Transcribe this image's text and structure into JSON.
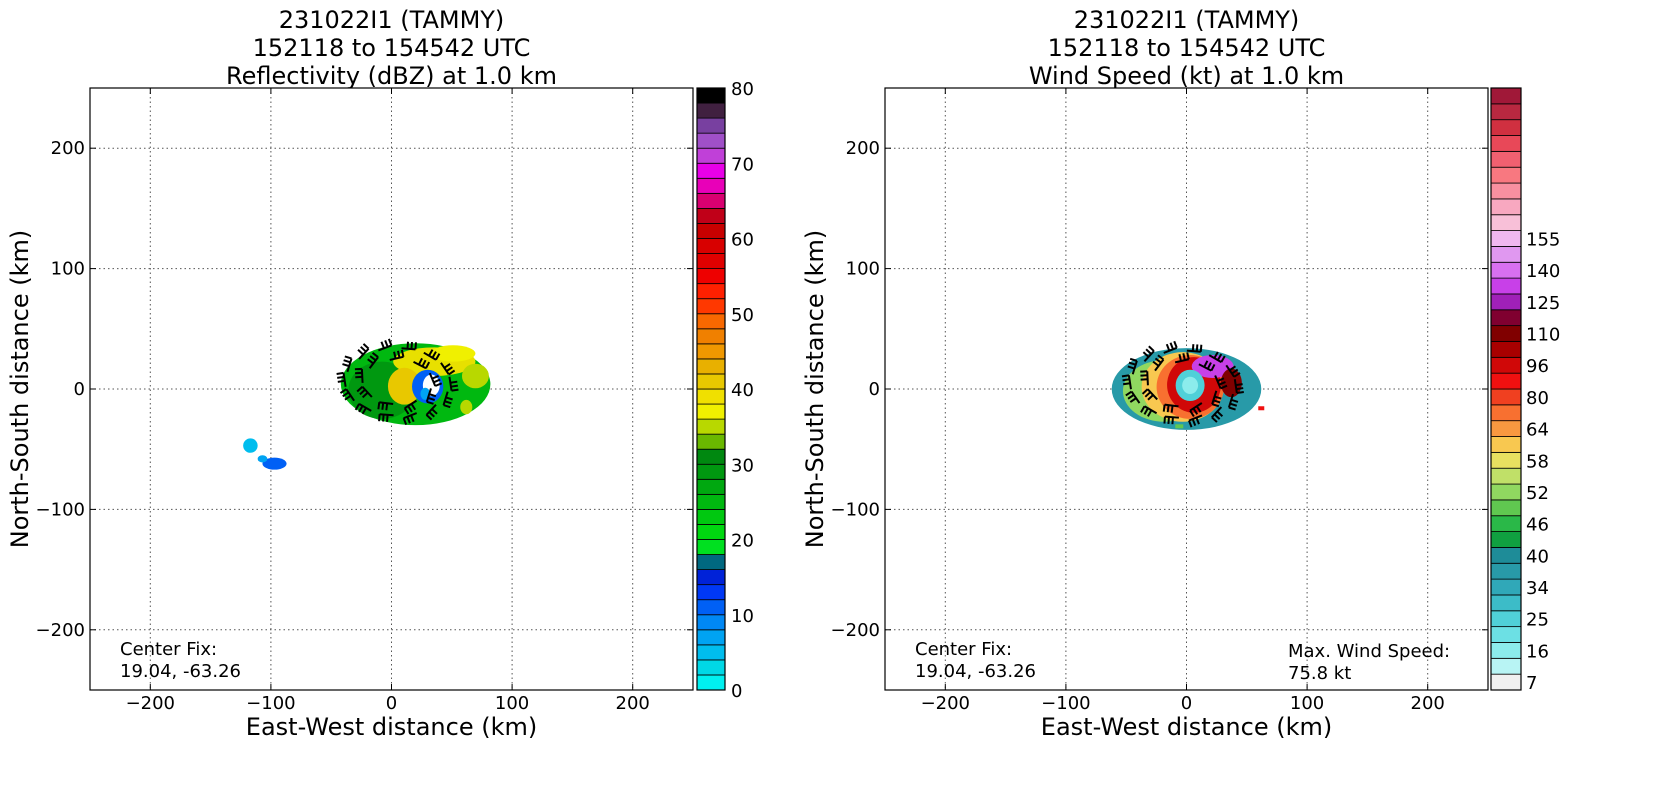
{
  "chart_data": [
    {
      "type": "heatmap",
      "title": [
        "231022I1 (TAMMY)",
        "152118 to 154542 UTC",
        "Reflectivity (dBZ) at 1.0 km"
      ],
      "xlabel": "East-West distance (km)",
      "ylabel": "North-South distance (km)",
      "xlim": [
        -250,
        250
      ],
      "ylim": [
        -250,
        250
      ],
      "xticks": [
        -200,
        -100,
        0,
        100,
        200
      ],
      "yticks": [
        -200,
        -100,
        0,
        100,
        200
      ],
      "xtick_labels": [
        "−200",
        "−100",
        "0",
        "100",
        "200"
      ],
      "ytick_labels": [
        "−200",
        "−100",
        "0",
        "100",
        "200"
      ],
      "grid": true,
      "annotation": [
        "Center Fix:",
        "19.04, -63.26"
      ],
      "colorbar": {
        "min": 0,
        "max": 80,
        "tick_values": [
          0,
          10,
          20,
          30,
          40,
          50,
          60,
          70,
          80
        ],
        "tick_labels": [
          "0",
          "10",
          "20",
          "30",
          "40",
          "50",
          "60",
          "70",
          "80"
        ],
        "colors": [
          "#00f0f0",
          "#00d8e6",
          "#00bdee",
          "#00a3f2",
          "#0088f5",
          "#0060f5",
          "#0038f5",
          "#0022d8",
          "#006880",
          "#00e020",
          "#00d810",
          "#00c810",
          "#00b810",
          "#00a810",
          "#009810",
          "#008810",
          "#6ab800",
          "#b8d800",
          "#f0f000",
          "#f0e000",
          "#e8c800",
          "#e8b000",
          "#f09800",
          "#f08000",
          "#f86800",
          "#ff3800",
          "#ff2000",
          "#ee0000",
          "#e00000",
          "#d80000",
          "#c80000",
          "#c00018",
          "#d80070",
          "#e800b8",
          "#e800e8",
          "#c040d8",
          "#a050c8",
          "#7840a0",
          "#402040",
          "#000000"
        ]
      },
      "features": [
        {
          "name": "storm",
          "x": 20,
          "y": 4,
          "rx": 62,
          "ry": 34
        },
        {
          "name": "band-cell-1",
          "x": -117,
          "y": -47,
          "rx": 6,
          "ry": 6
        },
        {
          "name": "band-cell-2",
          "x": -97,
          "y": -62,
          "rx": 10,
          "ry": 5
        }
      ]
    },
    {
      "type": "heatmap",
      "title": [
        "231022I1 (TAMMY)",
        "152118 to 154542 UTC",
        "Wind Speed (kt) at 1.0 km"
      ],
      "xlabel": "East-West distance (km)",
      "ylabel": "North-South distance (km)",
      "xlim": [
        -250,
        250
      ],
      "ylim": [
        -250,
        250
      ],
      "xticks": [
        -200,
        -100,
        0,
        100,
        200
      ],
      "yticks": [
        -200,
        -100,
        0,
        100,
        200
      ],
      "xtick_labels": [
        "−200",
        "−100",
        "0",
        "100",
        "200"
      ],
      "ytick_labels": [
        "−200",
        "−100",
        "0",
        "100",
        "200"
      ],
      "grid": true,
      "annotation": [
        "Center Fix:",
        "19.04, -63.26"
      ],
      "annotation_right": [
        "Max. Wind Speed:",
        "75.8 kt"
      ],
      "colorbar": {
        "tick_labels": [
          "7",
          "16",
          "25",
          "34",
          "40",
          "46",
          "52",
          "58",
          "64",
          "80",
          "96",
          "110",
          "125",
          "140",
          "155"
        ],
        "tick_bin_index": [
          0,
          2,
          4,
          6,
          8,
          10,
          12,
          14,
          16,
          18,
          20,
          22,
          24,
          26,
          28
        ],
        "colors": [
          "#f0f0f0",
          "#b8f4f4",
          "#8cecec",
          "#6ce0e4",
          "#50d0d8",
          "#3cbcc8",
          "#30a8b8",
          "#289aa8",
          "#1e8c98",
          "#10a040",
          "#2ab848",
          "#60c850",
          "#90d860",
          "#c0e068",
          "#e8e060",
          "#f8c850",
          "#f89840",
          "#f87030",
          "#f04020",
          "#f01010",
          "#d00808",
          "#a80000",
          "#800000",
          "#800030",
          "#a020b8",
          "#c840e8",
          "#d870f0",
          "#e098f0",
          "#f0b8f0",
          "#f8c0d8",
          "#f8a8c0",
          "#f890a0",
          "#f87880",
          "#f06070",
          "#e84858",
          "#d03040",
          "#b82840",
          "#a01838"
        ]
      },
      "features": [
        {
          "name": "storm",
          "x": 0,
          "y": 0,
          "rx": 62,
          "ry": 34
        },
        {
          "name": "eye",
          "x": 3,
          "y": 3,
          "rx": 12,
          "ry": 13
        },
        {
          "name": "isolated-cell",
          "x": 62,
          "y": -16,
          "rx": 2,
          "ry": 1
        }
      ]
    }
  ]
}
